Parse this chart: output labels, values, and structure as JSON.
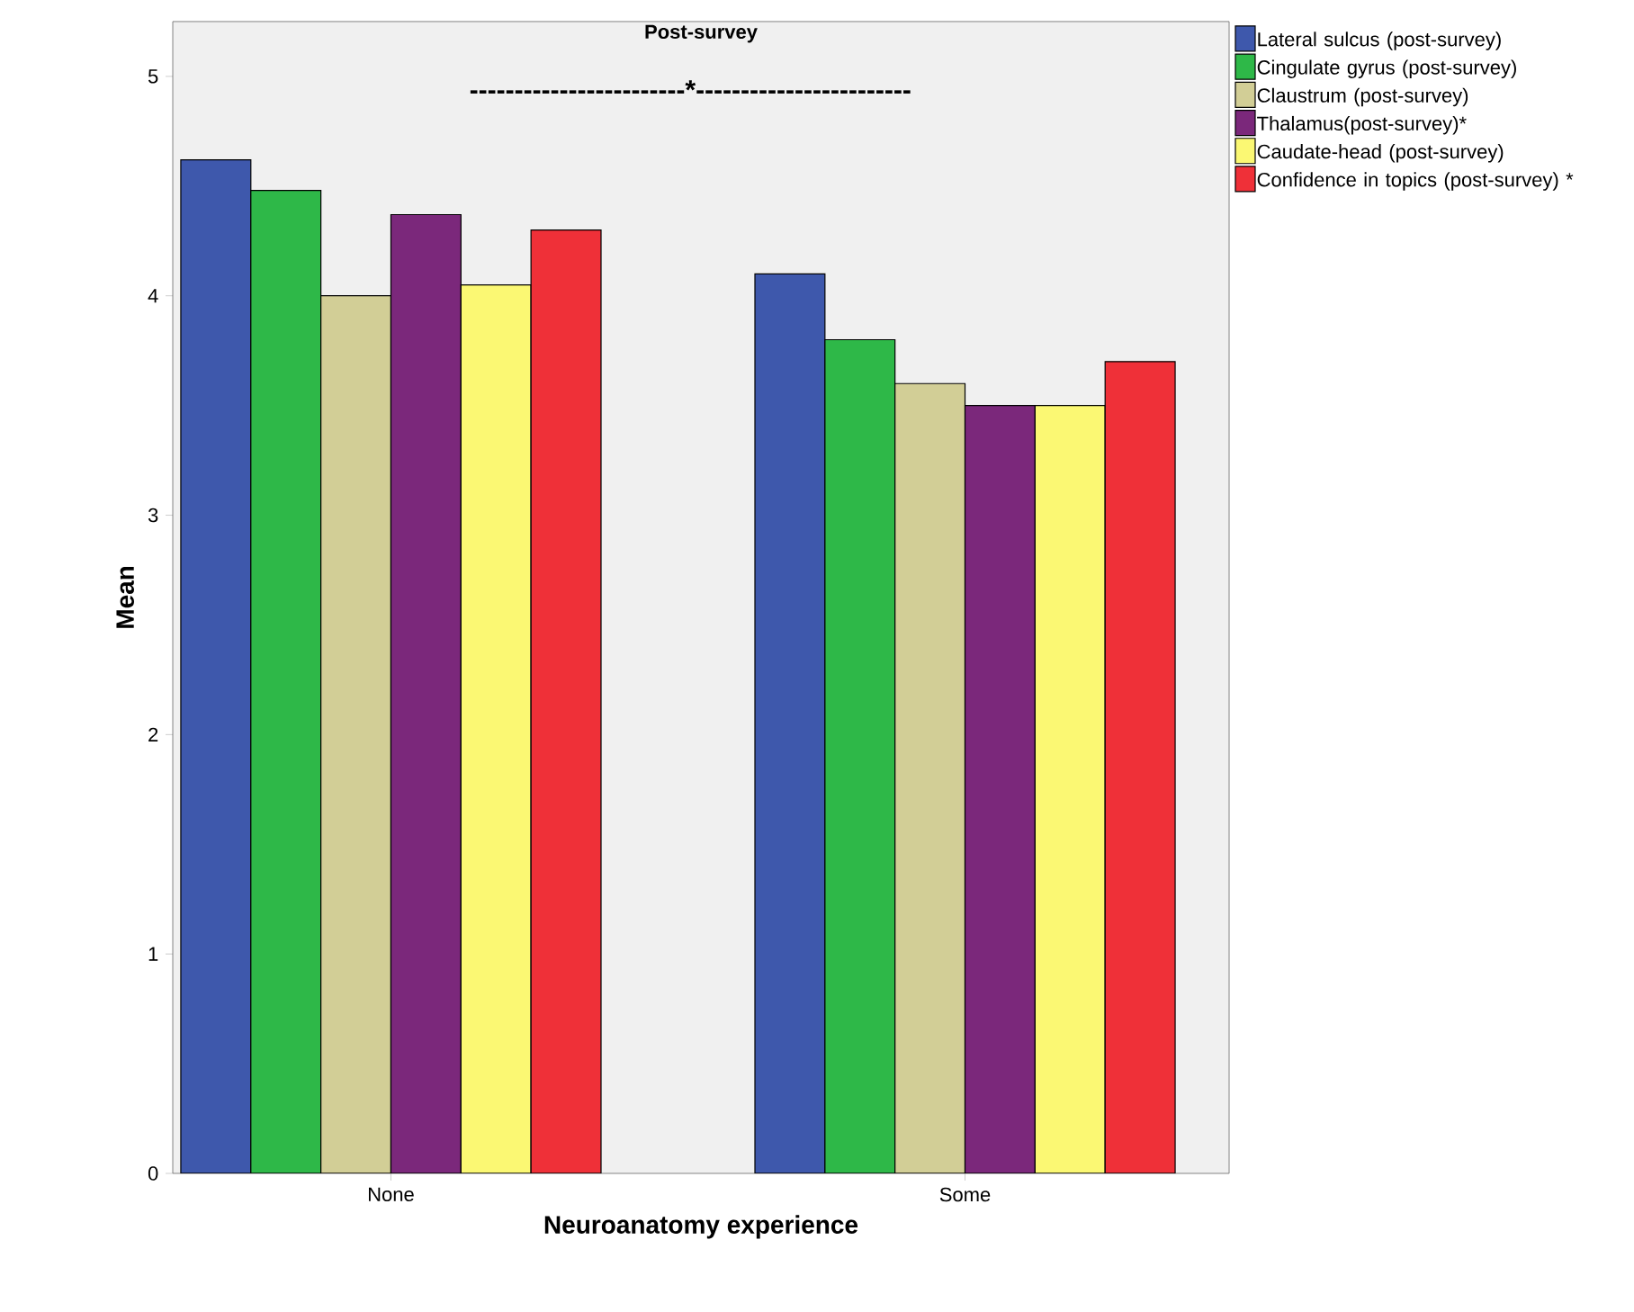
{
  "chart_data": {
    "type": "bar",
    "title": "Post-survey",
    "xlabel": "Neuroanatomy experience",
    "ylabel": "Mean",
    "categories": [
      "None",
      "Some"
    ],
    "series": [
      {
        "name": "Lateral sulcus (post-survey)",
        "color": "#3e58ac",
        "values": [
          4.62,
          4.1
        ]
      },
      {
        "name": "Cingulate gyrus (post-survey)",
        "color": "#2eb848",
        "values": [
          4.48,
          3.8
        ]
      },
      {
        "name": "Claustrum (post-survey)",
        "color": "#d2ce96",
        "values": [
          4.0,
          3.6
        ]
      },
      {
        "name": "Thalamus(post-survey)*",
        "color": "#7b287b",
        "values": [
          4.37,
          3.5
        ]
      },
      {
        "name": "Caudate-head (post-survey)",
        "color": "#fbf873",
        "values": [
          4.05,
          3.5
        ]
      },
      {
        "name": "Confidence in topics (post-survey) *",
        "color": "#ef3038",
        "values": [
          4.3,
          3.7
        ]
      }
    ],
    "ylim": [
      0,
      5.25
    ],
    "yticks": [
      0,
      1,
      2,
      3,
      4,
      5
    ],
    "legend": "right",
    "grid": false,
    "annotations": [
      "------------------------*------------------------"
    ]
  }
}
